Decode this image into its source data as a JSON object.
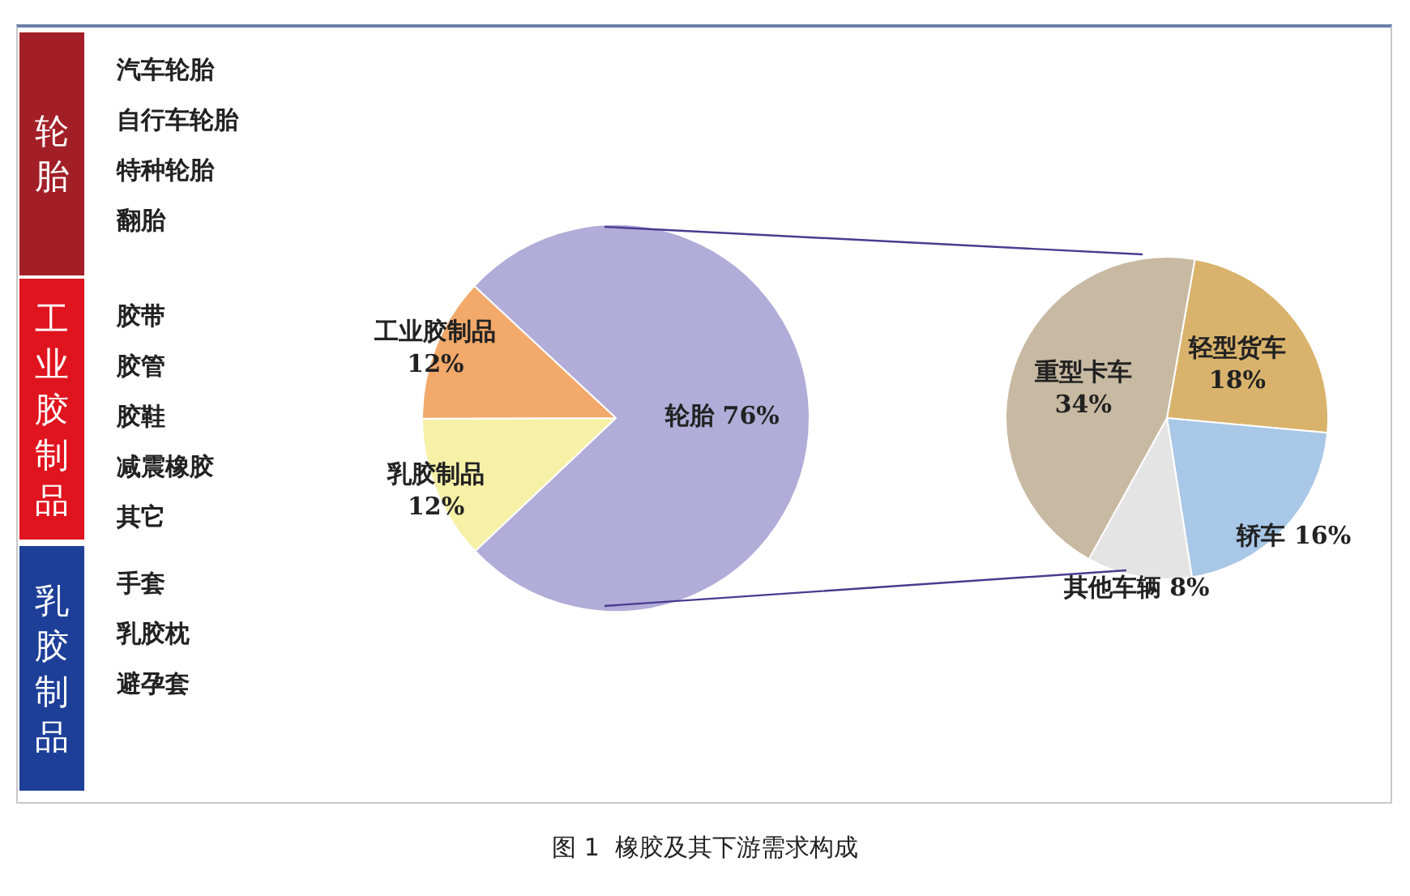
{
  "chart_data": [
    {
      "type": "other",
      "title": "轮胎",
      "color": "#a31f27",
      "annotations": [
        "汽车轮胎",
        "自行车轮胎",
        "特种轮胎",
        "翻胎"
      ]
    },
    {
      "type": "other",
      "title": "工业胶制品",
      "color": "#e0141e",
      "annotations": [
        "胶带",
        "胶管",
        "胶鞋",
        "减震橡胶",
        "其它"
      ]
    },
    {
      "type": "other",
      "title": "乳胶制品",
      "color": "#1d3f98",
      "annotations": [
        "手套",
        "乳胶枕",
        "避孕套"
      ]
    },
    {
      "type": "pie",
      "categories": [
        "轮胎",
        "乳胶制品",
        "工业胶制品"
      ],
      "values": [
        76,
        12,
        12
      ],
      "value_labels": [
        "76%",
        "12%",
        "12%"
      ],
      "colors": [
        "#b1acd8",
        "#f7f1a8",
        "#f2a96a"
      ],
      "legend": false,
      "annotations": [
        "图 1  橡胶及其下游需求构成"
      ]
    },
    {
      "type": "pie",
      "categories": [
        "轻型货车",
        "轿车",
        "其他车辆",
        "重型卡车"
      ],
      "values": [
        18,
        16,
        8,
        34
      ],
      "value_labels": [
        "18%",
        "16%",
        "8%",
        "34%"
      ],
      "colors": [
        "#d9b36c",
        "#a9c7e6",
        "#e4e4e4",
        "#c8b9a2"
      ],
      "legend": false
    }
  ]
}
